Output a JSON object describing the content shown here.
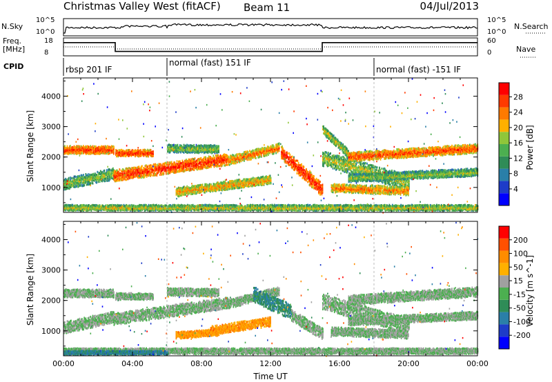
{
  "header": {
    "station": "Christmas Valley West (fitACF)",
    "beam": "Beam 11",
    "date": "04/Jul/2013"
  },
  "status_panels": {
    "nsky": {
      "label": "N.Sky",
      "y_ticks": [
        "10^5",
        "10^0"
      ]
    },
    "nsearch": {
      "label": "N.Search",
      "y_ticks": [
        "10^5",
        "10^0"
      ]
    },
    "freq": {
      "label_line1": "Freq.",
      "label_line2": "[MHz]",
      "y_ticks": [
        18,
        8
      ],
      "steps": [
        {
          "from": 0,
          "to": 3,
          "value": 15.6
        },
        {
          "from": 3,
          "to": 15,
          "value": 9.2
        },
        {
          "from": 15,
          "to": 24,
          "value": 15.6
        }
      ]
    },
    "nave": {
      "label": "Nave",
      "y_ticks": [
        60,
        0
      ]
    },
    "cpid": {
      "label": "CPID",
      "segments": [
        {
          "start": 0,
          "text": "rbsp 201 IF"
        },
        {
          "start": 6,
          "text": "normal (fast) 151 IF"
        },
        {
          "start": 18,
          "text": "normal (fast) -151 IF"
        }
      ]
    }
  },
  "chart_data": [
    {
      "type": "heatmap",
      "parameter": "Power",
      "ylabel": "Slant Range [km]",
      "ylim": [
        180,
        4600
      ],
      "y_ticks": [
        1000,
        2000,
        3000,
        4000
      ],
      "colorbar": {
        "label": "Power [dB]",
        "ticks": [
          4,
          8,
          12,
          16,
          20,
          24,
          28
        ],
        "colors": [
          "#0000ff",
          "#1e3cc8",
          "#2a7fa8",
          "#2f8c57",
          "#4caf50",
          "#8fc63a",
          "#ffb000",
          "#ff7a00",
          "#ff3a00",
          "#ff0000"
        ]
      },
      "bands": [
        {
          "t0": 0.0,
          "t1": 2.9,
          "r_start": 2230,
          "r_end": 2230,
          "width": 260,
          "level": 0.88
        },
        {
          "t0": 3.0,
          "t1": 5.2,
          "r_start": 2130,
          "r_end": 2130,
          "width": 220,
          "level": 0.9
        },
        {
          "t0": 6.0,
          "t1": 9.0,
          "r_start": 2280,
          "r_end": 2250,
          "width": 260,
          "level": 0.55
        },
        {
          "t0": 0.0,
          "t1": 2.9,
          "r_start": 1100,
          "r_end": 1450,
          "width": 380,
          "level": 0.55
        },
        {
          "t0": 2.9,
          "t1": 9.5,
          "r_start": 1380,
          "r_end": 1920,
          "width": 380,
          "level": 0.9
        },
        {
          "t0": 9.5,
          "t1": 12.5,
          "r_start": 1880,
          "r_end": 2300,
          "width": 300,
          "level": 0.8
        },
        {
          "t0": 6.5,
          "t1": 12.0,
          "r_start": 850,
          "r_end": 1250,
          "width": 280,
          "level": 0.72
        },
        {
          "t0": 12.6,
          "t1": 15.0,
          "r_start": 2150,
          "r_end": 900,
          "width": 450,
          "level": 0.92
        },
        {
          "t0": 15.0,
          "t1": 20.0,
          "r_start": 1950,
          "r_end": 1150,
          "width": 500,
          "level": 0.6
        },
        {
          "t0": 15.0,
          "t1": 16.5,
          "r_start": 2900,
          "r_end": 2100,
          "width": 280,
          "level": 0.6
        },
        {
          "t0": 16.5,
          "t1": 24.0,
          "r_start": 2000,
          "r_end": 2280,
          "width": 300,
          "level": 0.85
        },
        {
          "t0": 16.5,
          "t1": 24.0,
          "r_start": 1300,
          "r_end": 1500,
          "width": 260,
          "level": 0.55
        },
        {
          "t0": 15.5,
          "t1": 20.0,
          "r_start": 980,
          "r_end": 880,
          "width": 280,
          "level": 0.78
        },
        {
          "t0": 0.0,
          "t1": 24.0,
          "r_start": 330,
          "r_end": 330,
          "width": 190,
          "level": 0.62
        }
      ]
    },
    {
      "type": "heatmap",
      "parameter": "Velocity",
      "ylabel": "Slant Range [km]",
      "xlabel": "Time UT",
      "ylim": [
        180,
        4600
      ],
      "y_ticks": [
        1000,
        2000,
        3000,
        4000
      ],
      "x_ticks": [
        "00:00",
        "04:00",
        "08:00",
        "12:00",
        "16:00",
        "20:00",
        "00:00"
      ],
      "colorbar": {
        "label": "Velocity [m s^-1]",
        "ticks": [
          200,
          100,
          50,
          15,
          -15,
          -50,
          -100,
          -200
        ],
        "colors": [
          "#0000ff",
          "#1e3cc8",
          "#2a7fa8",
          "#2f8c57",
          "#4caf50",
          "#a0a0a0",
          "#ffb000",
          "#ff8c00",
          "#ff5000",
          "#ff0000"
        ]
      },
      "bands": [
        {
          "t0": 0.0,
          "t1": 2.9,
          "r_start": 2230,
          "r_end": 2230,
          "width": 260,
          "level": 0.5
        },
        {
          "t0": 3.0,
          "t1": 5.2,
          "r_start": 2130,
          "r_end": 2130,
          "width": 220,
          "level": 0.5
        },
        {
          "t0": 6.0,
          "t1": 9.0,
          "r_start": 2280,
          "r_end": 2250,
          "width": 260,
          "level": 0.5
        },
        {
          "t0": 0.0,
          "t1": 2.9,
          "r_start": 1100,
          "r_end": 1450,
          "width": 380,
          "level": 0.5
        },
        {
          "t0": 2.9,
          "t1": 9.5,
          "r_start": 1380,
          "r_end": 1920,
          "width": 380,
          "level": 0.5
        },
        {
          "t0": 9.5,
          "t1": 12.5,
          "r_start": 1880,
          "r_end": 2300,
          "width": 300,
          "level": 0.5
        },
        {
          "t0": 8.5,
          "t1": 12.0,
          "r_start": 1000,
          "r_end": 1300,
          "width": 300,
          "level": 0.72
        },
        {
          "t0": 6.5,
          "t1": 9.0,
          "r_start": 850,
          "r_end": 950,
          "width": 220,
          "level": 0.72
        },
        {
          "t0": 11.0,
          "t1": 13.2,
          "r_start": 2200,
          "r_end": 1600,
          "width": 500,
          "level": 0.32
        },
        {
          "t0": 13.2,
          "t1": 15.0,
          "r_start": 1500,
          "r_end": 900,
          "width": 380,
          "level": 0.5
        },
        {
          "t0": 15.0,
          "t1": 20.0,
          "r_start": 1950,
          "r_end": 1150,
          "width": 500,
          "level": 0.5
        },
        {
          "t0": 16.5,
          "t1": 24.0,
          "r_start": 2000,
          "r_end": 2280,
          "width": 320,
          "level": 0.5
        },
        {
          "t0": 16.5,
          "t1": 24.0,
          "r_start": 1300,
          "r_end": 1500,
          "width": 260,
          "level": 0.5
        },
        {
          "t0": 15.5,
          "t1": 20.0,
          "r_start": 980,
          "r_end": 880,
          "width": 280,
          "level": 0.5
        },
        {
          "t0": 0.0,
          "t1": 24.0,
          "r_start": 330,
          "r_end": 330,
          "width": 190,
          "level": 0.5
        },
        {
          "t0": 0.0,
          "t1": 6.0,
          "r_start": 280,
          "r_end": 280,
          "width": 120,
          "level": 0.28
        }
      ]
    }
  ]
}
